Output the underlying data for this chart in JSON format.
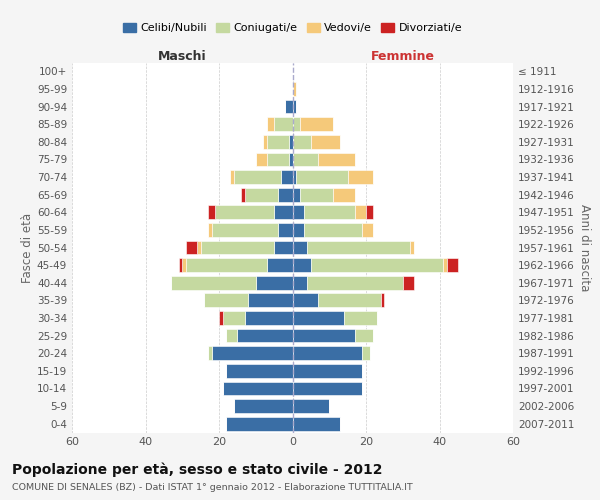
{
  "age_groups": [
    "0-4",
    "5-9",
    "10-14",
    "15-19",
    "20-24",
    "25-29",
    "30-34",
    "35-39",
    "40-44",
    "45-49",
    "50-54",
    "55-59",
    "60-64",
    "65-69",
    "70-74",
    "75-79",
    "80-84",
    "85-89",
    "90-94",
    "95-99",
    "100+"
  ],
  "birth_years": [
    "2007-2011",
    "2002-2006",
    "1997-2001",
    "1992-1996",
    "1987-1991",
    "1982-1986",
    "1977-1981",
    "1972-1976",
    "1967-1971",
    "1962-1966",
    "1957-1961",
    "1952-1956",
    "1947-1951",
    "1942-1946",
    "1937-1941",
    "1932-1936",
    "1927-1931",
    "1922-1926",
    "1917-1921",
    "1912-1916",
    "≤ 1911"
  ],
  "male": {
    "celibi": [
      18,
      16,
      19,
      18,
      22,
      15,
      13,
      12,
      10,
      7,
      5,
      4,
      5,
      4,
      3,
      1,
      1,
      0,
      2,
      0,
      0
    ],
    "coniugati": [
      0,
      0,
      0,
      0,
      1,
      3,
      6,
      12,
      23,
      22,
      20,
      18,
      16,
      9,
      13,
      6,
      6,
      5,
      0,
      0,
      0
    ],
    "vedovi": [
      0,
      0,
      0,
      0,
      0,
      0,
      0,
      0,
      0,
      1,
      1,
      1,
      0,
      0,
      1,
      3,
      1,
      2,
      0,
      0,
      0
    ],
    "divorziati": [
      0,
      0,
      0,
      0,
      0,
      0,
      1,
      0,
      0,
      1,
      3,
      0,
      2,
      1,
      0,
      0,
      0,
      0,
      0,
      0,
      0
    ]
  },
  "female": {
    "nubili": [
      13,
      10,
      19,
      19,
      19,
      17,
      14,
      7,
      4,
      5,
      4,
      3,
      3,
      2,
      1,
      0,
      0,
      0,
      1,
      0,
      0
    ],
    "coniugate": [
      0,
      0,
      0,
      0,
      2,
      5,
      9,
      17,
      26,
      36,
      28,
      16,
      14,
      9,
      14,
      7,
      5,
      2,
      0,
      0,
      0
    ],
    "vedove": [
      0,
      0,
      0,
      0,
      0,
      0,
      0,
      0,
      0,
      1,
      1,
      3,
      3,
      6,
      7,
      10,
      8,
      9,
      0,
      1,
      0
    ],
    "divorziate": [
      0,
      0,
      0,
      0,
      0,
      0,
      0,
      1,
      3,
      3,
      0,
      0,
      2,
      0,
      0,
      0,
      0,
      0,
      0,
      0,
      0
    ]
  },
  "colors": {
    "celibi": "#3a6ea5",
    "coniugati": "#c5d9a0",
    "vedovi": "#f5c97a",
    "divorziati": "#cc2222"
  },
  "xlim": 60,
  "title": "Popolazione per età, sesso e stato civile - 2012",
  "subtitle": "COMUNE DI SENALES (BZ) - Dati ISTAT 1° gennaio 2012 - Elaborazione TUTTITALIA.IT",
  "ylabel_left": "Fasce di età",
  "ylabel_right": "Anni di nascita",
  "header_left": "Maschi",
  "header_right": "Femmine",
  "legend_labels": [
    "Celibi/Nubili",
    "Coniugati/e",
    "Vedovi/e",
    "Divorziati/e"
  ],
  "bg_color": "#f5f5f5",
  "plot_bg": "#ffffff"
}
